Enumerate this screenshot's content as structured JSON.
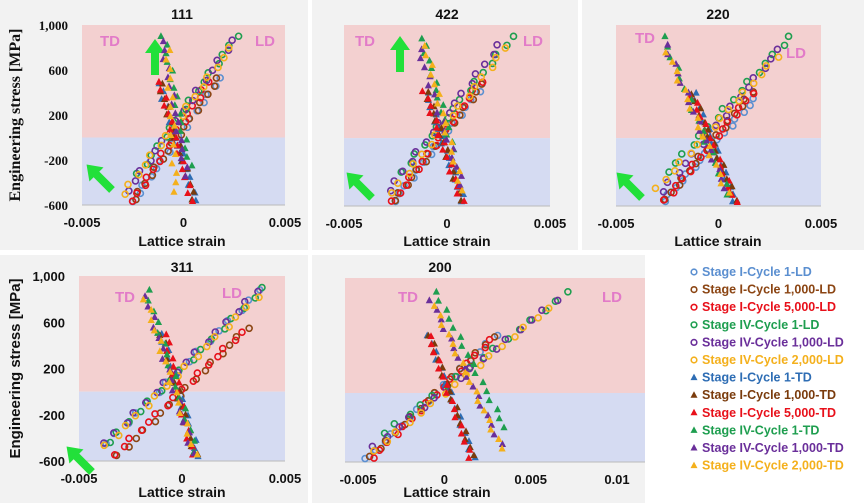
{
  "chart_data": [
    {
      "type": "scatter",
      "title": "111",
      "xlabel": "Lattice strain",
      "ylabel": "Engineering stress [MPa]",
      "xlim": [
        -0.005,
        0.005
      ],
      "ylim": [
        -600,
        1000
      ],
      "xticks": [
        "-0.005",
        "0",
        "0.005"
      ],
      "yticks": [
        "1,000",
        "600",
        "200",
        "-200",
        "-600"
      ],
      "annotations": [
        "TD",
        "LD"
      ],
      "LD": [
        [
          [
            -0.0025,
            -570
          ],
          [
            0.0018,
            530
          ]
        ],
        [
          [
            -0.0025,
            -560
          ],
          [
            0.0017,
            520
          ]
        ],
        [
          [
            -0.0025,
            -560
          ],
          [
            0.0012,
            500
          ]
        ],
        [
          [
            -0.0022,
            -320
          ],
          [
            0.0026,
            900
          ]
        ],
        [
          [
            -0.0027,
            -480
          ],
          [
            0.0025,
            860
          ]
        ],
        [
          [
            -0.003,
            -500
          ],
          [
            0.0023,
            800
          ]
        ]
      ],
      "TD": [
        [
          [
            -0.0012,
            480
          ],
          [
            0.0006,
            -560
          ]
        ],
        [
          [
            -0.0012,
            470
          ],
          [
            0.0005,
            -560
          ]
        ],
        [
          [
            -0.0012,
            500
          ],
          [
            0.0004,
            -560
          ]
        ],
        [
          [
            -0.001,
            900
          ],
          [
            0.0003,
            -250
          ]
        ],
        [
          [
            -0.001,
            850
          ],
          [
            0.0002,
            -350
          ]
        ],
        [
          [
            -0.0008,
            780
          ],
          [
            -0.0004,
            -480
          ]
        ]
      ]
    },
    {
      "type": "scatter",
      "title": "422",
      "xlabel": "Lattice strain",
      "xlim": [
        -0.005,
        0.005
      ],
      "ylim": [
        -600,
        1000
      ],
      "xticks": [
        "-0.005",
        "0",
        "0.005"
      ],
      "annotations": [
        "TD",
        "LD"
      ],
      "LD": [
        [
          [
            -0.0026,
            -560
          ],
          [
            0.0018,
            480
          ]
        ],
        [
          [
            -0.0026,
            -560
          ],
          [
            0.0017,
            470
          ]
        ],
        [
          [
            -0.0026,
            -550
          ],
          [
            0.0016,
            500
          ]
        ],
        [
          [
            -0.0022,
            -300
          ],
          [
            0.0032,
            900
          ]
        ],
        [
          [
            -0.0028,
            -470
          ],
          [
            0.0026,
            820
          ]
        ],
        [
          [
            -0.0027,
            -480
          ],
          [
            0.0028,
            800
          ]
        ]
      ],
      "TD": [
        [
          [
            -0.001,
            400
          ],
          [
            0.0008,
            -560
          ]
        ],
        [
          [
            -0.001,
            400
          ],
          [
            0.0007,
            -560
          ]
        ],
        [
          [
            -0.0011,
            420
          ],
          [
            0.0007,
            -550
          ]
        ],
        [
          [
            -0.0012,
            880
          ],
          [
            0.0003,
            -100
          ]
        ],
        [
          [
            -0.0013,
            780
          ],
          [
            0.0008,
            -420
          ]
        ],
        [
          [
            -0.0011,
            820
          ],
          [
            0.0007,
            -460
          ]
        ]
      ]
    },
    {
      "type": "scatter",
      "title": "220",
      "xlabel": "Lattice strain",
      "xlim": [
        -0.005,
        0.005
      ],
      "ylim": [
        -600,
        1000
      ],
      "xticks": [
        "-0.005",
        "0",
        "0.005"
      ],
      "annotations": [
        "TD",
        "LD"
      ],
      "LD": [
        [
          [
            -0.0027,
            -560
          ],
          [
            0.0018,
            350
          ]
        ],
        [
          [
            -0.0026,
            -550
          ],
          [
            0.0016,
            400
          ]
        ],
        [
          [
            -0.0026,
            -540
          ],
          [
            0.0016,
            400
          ]
        ],
        [
          [
            -0.0025,
            -300
          ],
          [
            0.0035,
            900
          ]
        ],
        [
          [
            -0.0027,
            -480
          ],
          [
            0.003,
            780
          ]
        ],
        [
          [
            -0.003,
            -440
          ],
          [
            0.0028,
            720
          ]
        ]
      ],
      "TD": [
        [
          [
            -0.0012,
            400
          ],
          [
            0.0008,
            -560
          ]
        ],
        [
          [
            -0.0013,
            380
          ],
          [
            0.0008,
            -560
          ]
        ],
        [
          [
            -0.0013,
            380
          ],
          [
            0.0008,
            -560
          ]
        ],
        [
          [
            -0.0027,
            900
          ],
          [
            0.0005,
            -500
          ]
        ],
        [
          [
            -0.0025,
            820
          ],
          [
            0.0004,
            -450
          ]
        ],
        [
          [
            -0.0025,
            760
          ],
          [
            0.0004,
            -480
          ]
        ]
      ]
    },
    {
      "type": "scatter",
      "title": "311",
      "xlabel": "Lattice strain",
      "ylabel": "Engineering stress [MPa]",
      "xlim": [
        -0.005,
        0.005
      ],
      "ylim": [
        -600,
        1000
      ],
      "xticks": [
        "-0.005",
        "0",
        "0.005"
      ],
      "yticks": [
        "1,000",
        "600",
        "200",
        "-200",
        "-600"
      ],
      "annotations": [
        "TD",
        "LD"
      ],
      "LD": [
        [
          [
            -0.0037,
            -450
          ],
          [
            0.0038,
            880
          ]
        ],
        [
          [
            -0.0031,
            -560
          ],
          [
            0.0031,
            540
          ]
        ],
        [
          [
            -0.0033,
            -540
          ],
          [
            0.0029,
            520
          ]
        ],
        [
          [
            -0.0036,
            -440
          ],
          [
            0.004,
            900
          ]
        ],
        [
          [
            -0.0037,
            -450
          ],
          [
            0.0037,
            860
          ]
        ],
        [
          [
            -0.0037,
            -460
          ],
          [
            0.0036,
            820
          ]
        ]
      ],
      "TD": [
        [
          [
            -0.001,
            500
          ],
          [
            0.0008,
            -560
          ]
        ],
        [
          [
            -0.001,
            480
          ],
          [
            0.0006,
            -550
          ]
        ],
        [
          [
            -0.0008,
            500
          ],
          [
            0.0005,
            -540
          ]
        ],
        [
          [
            -0.0017,
            880
          ],
          [
            0.0007,
            -520
          ]
        ],
        [
          [
            -0.0017,
            820
          ],
          [
            0.0006,
            -540
          ]
        ],
        [
          [
            -0.0018,
            800
          ],
          [
            0.0006,
            -540
          ]
        ]
      ]
    },
    {
      "type": "scatter",
      "title": "200",
      "xlabel": "Lattice strain",
      "xlim": [
        -0.005,
        0.01
      ],
      "ylim": [
        -600,
        1000
      ],
      "xticks": [
        "-0.005",
        "0",
        "0.005",
        "0.01"
      ],
      "annotations": [
        "TD",
        "LD"
      ],
      "LD": [
        [
          [
            -0.0045,
            -570
          ],
          [
            0.003,
            500
          ]
        ],
        [
          [
            -0.0043,
            -560
          ],
          [
            0.0028,
            480
          ]
        ],
        [
          [
            -0.0042,
            -560
          ],
          [
            0.0027,
            470
          ]
        ],
        [
          [
            -0.0035,
            -350
          ],
          [
            0.0072,
            880
          ]
        ],
        [
          [
            -0.004,
            -470
          ],
          [
            0.0065,
            800
          ]
        ],
        [
          [
            -0.0041,
            -500
          ],
          [
            0.006,
            740
          ]
        ]
      ],
      "TD": [
        [
          [
            -0.0009,
            500
          ],
          [
            0.0017,
            -560
          ]
        ],
        [
          [
            -0.0009,
            490
          ],
          [
            0.0016,
            -550
          ]
        ],
        [
          [
            -0.0009,
            500
          ],
          [
            0.0015,
            -560
          ]
        ],
        [
          [
            -0.0005,
            880
          ],
          [
            0.0035,
            -300
          ]
        ],
        [
          [
            -0.0007,
            800
          ],
          [
            0.0033,
            -450
          ]
        ],
        [
          [
            -0.0006,
            760
          ],
          [
            0.0033,
            -480
          ]
        ]
      ]
    }
  ],
  "legend": [
    {
      "label": "Stage I-Cycle 1-LD",
      "color": "#5b8fd0",
      "marker": "circle"
    },
    {
      "label": "Stage I-Cycle 1,000-LD",
      "color": "#8b4513",
      "marker": "circle"
    },
    {
      "label": "Stage I-Cycle 5,000-LD",
      "color": "#e8101a",
      "marker": "circle"
    },
    {
      "label": "Stage IV-Cycle 1-LD",
      "color": "#1e9e4f",
      "marker": "circle"
    },
    {
      "label": "Stage IV-Cycle 1,000-LD",
      "color": "#6a2f9a",
      "marker": "circle"
    },
    {
      "label": "Stage IV-Cycle 2,000-LD",
      "color": "#f4b01c",
      "marker": "circle"
    },
    {
      "label": "Stage I-Cycle 1-TD",
      "color": "#2e6db4",
      "marker": "triangle"
    },
    {
      "label": "Stage I-Cycle 1,000-TD",
      "color": "#7a3b0c",
      "marker": "triangle"
    },
    {
      "label": "Stage I-Cycle 5,000-TD",
      "color": "#e8101a",
      "marker": "triangle"
    },
    {
      "label": "Stage IV-Cycle 1-TD",
      "color": "#1e9e4f",
      "marker": "triangle"
    },
    {
      "label": "Stage IV-Cycle 1,000-TD",
      "color": "#6a2f9a",
      "marker": "triangle"
    },
    {
      "label": "Stage IV-Cycle 2,000-TD",
      "color": "#f4b01c",
      "marker": "triangle"
    }
  ],
  "colors": {
    "tension_bg": "#f3d0d0",
    "compression_bg": "#d5dbf2",
    "panel_bg": "#f2f2f2",
    "arrow": "#22e03a",
    "annotation": "#e27bc8"
  }
}
